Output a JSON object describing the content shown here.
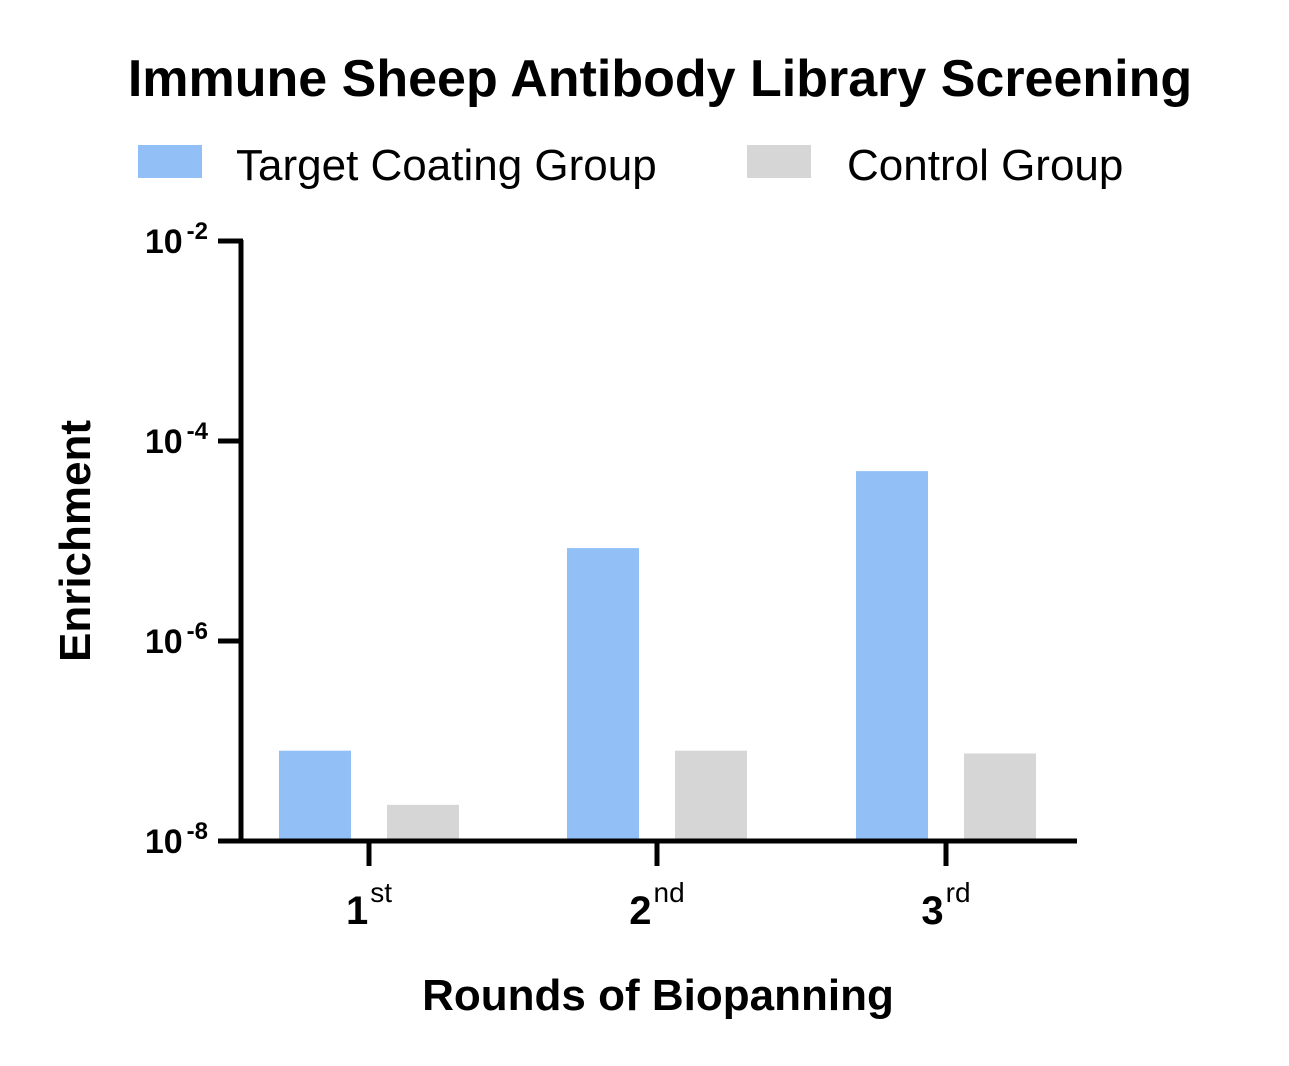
{
  "chart_data": {
    "type": "bar",
    "title": "Immune Sheep Antibody Library Screening",
    "xlabel": "Rounds of Biopanning",
    "ylabel": "Enrichment",
    "yscale": "log",
    "ylim": [
      1e-08,
      0.01
    ],
    "grid": false,
    "legend_position": "top",
    "categories": [
      {
        "base": "1",
        "sup": "st"
      },
      {
        "base": "2",
        "sup": "nd"
      },
      {
        "base": "3",
        "sup": "rd"
      }
    ],
    "yticks": [
      {
        "base": "10",
        "sup": "-2",
        "value": 0.01
      },
      {
        "base": "10",
        "sup": "-4",
        "value": 0.0001
      },
      {
        "base": "10",
        "sup": "-6",
        "value": 1e-06
      },
      {
        "base": "10",
        "sup": "-8",
        "value": 1e-08
      }
    ],
    "series": [
      {
        "name": "Target Coating Group",
        "color": "#93bff7",
        "values": [
          8e-08,
          8.5e-06,
          5e-05
        ]
      },
      {
        "name": "Control Group",
        "color": "#d6d6d6",
        "values": [
          2.3e-08,
          8e-08,
          7.5e-08
        ]
      }
    ]
  }
}
